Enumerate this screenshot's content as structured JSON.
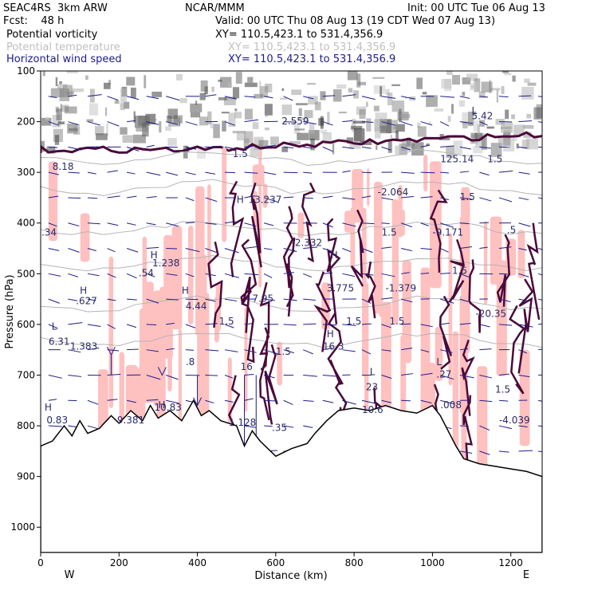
{
  "header": {
    "model": "SEAC4RS  3km ARW",
    "org": "NCAR/MMM",
    "init": "Init: 00 UTC Tue 06 Aug 13",
    "fcst": "Fcst:    48 h",
    "valid": "Valid: 00 UTC Thu 08 Aug 13 (19 CDT Wed 07 Aug 13)",
    "fields": [
      {
        "name": "Potential vorticity",
        "xy": "XY= 110.5,423.1 to 531.4,356.9",
        "color": "#000000"
      },
      {
        "name": "Potential temperature",
        "xy": "XY= 110.5,423.1 to 531.4,356.9",
        "color": "#c0c0c0"
      },
      {
        "name": "Horizontal wind speed",
        "xy": "XY= 110.5,423.1 to 531.4,356.9",
        "color": "#1c1c8c"
      }
    ]
  },
  "colors": {
    "pv_fill": "#ffc0c0",
    "pv_contour": "#4a0a3a",
    "wind": "#1c1c8c",
    "theta": "#b4b4b4",
    "terrain": "#000000"
  },
  "chart_data": {
    "type": "cross-section",
    "xlabel": "Distance (km)",
    "ylabel": "Pressure (hPa)",
    "xlim": [
      0,
      1280
    ],
    "ylim": [
      1050,
      100
    ],
    "x_ticks": [
      "0",
      "200",
      "400",
      "600",
      "800",
      "1000",
      "1200"
    ],
    "y_ticks": [
      "100",
      "200",
      "300",
      "400",
      "500",
      "600",
      "700",
      "800",
      "900",
      "1000"
    ],
    "x_end_labels": [
      "W",
      "E"
    ],
    "terrain_profile": [
      [
        0,
        840
      ],
      [
        30,
        830
      ],
      [
        60,
        800
      ],
      [
        80,
        820
      ],
      [
        100,
        790
      ],
      [
        120,
        815
      ],
      [
        150,
        805
      ],
      [
        180,
        780
      ],
      [
        200,
        795
      ],
      [
        230,
        770
      ],
      [
        260,
        790
      ],
      [
        280,
        760
      ],
      [
        300,
        785
      ],
      [
        330,
        770
      ],
      [
        360,
        790
      ],
      [
        390,
        750
      ],
      [
        410,
        780
      ],
      [
        430,
        770
      ],
      [
        460,
        790
      ],
      [
        500,
        800
      ],
      [
        520,
        840
      ],
      [
        540,
        810
      ],
      [
        560,
        830
      ],
      [
        600,
        860
      ],
      [
        640,
        845
      ],
      [
        680,
        835
      ],
      [
        700,
        815
      ],
      [
        730,
        790
      ],
      [
        760,
        770
      ],
      [
        800,
        765
      ],
      [
        840,
        770
      ],
      [
        880,
        760
      ],
      [
        920,
        770
      ],
      [
        960,
        775
      ],
      [
        1000,
        760
      ],
      [
        1020,
        780
      ],
      [
        1040,
        810
      ],
      [
        1060,
        840
      ],
      [
        1080,
        865
      ],
      [
        1120,
        875
      ],
      [
        1160,
        880
      ],
      [
        1200,
        885
      ],
      [
        1240,
        890
      ],
      [
        1280,
        900
      ]
    ],
    "annotations": [
      {
        "text": "8.18",
        "x": 30,
        "p": 295
      },
      {
        "text": "2.559",
        "x": 615,
        "p": 205
      },
      {
        "text": "1.5",
        "x": 490,
        "p": 270
      },
      {
        "text": "H",
        "x": 500,
        "p": 360
      },
      {
        "text": "13.237",
        "x": 530,
        "p": 360
      },
      {
        "text": "-2.064",
        "x": 860,
        "p": 345
      },
      {
        "text": "1.5",
        "x": 1070,
        "p": 355
      },
      {
        "text": "-9.171",
        "x": 1000,
        "p": 425
      },
      {
        "text": "1.5",
        "x": 870,
        "p": 425
      },
      {
        "text": "-2.332",
        "x": 640,
        "p": 445
      },
      {
        "text": ".34",
        "x": 2,
        "p": 425
      },
      {
        "text": "H",
        "x": 280,
        "p": 470
      },
      {
        "text": "1.238",
        "x": 285,
        "p": 485
      },
      {
        "text": ".54",
        "x": 250,
        "p": 505
      },
      {
        "text": "H",
        "x": 100,
        "p": 540
      },
      {
        "text": ".627",
        "x": 90,
        "p": 560
      },
      {
        "text": "H",
        "x": 360,
        "p": 540
      },
      {
        "text": "4.44",
        "x": 370,
        "p": 570
      },
      {
        "text": "7.95",
        "x": 540,
        "p": 555
      },
      {
        "text": "H",
        "x": 740,
        "p": 470
      },
      {
        "text": "3.775",
        "x": 730,
        "p": 535
      },
      {
        "text": "-1.379",
        "x": 880,
        "p": 535
      },
      {
        "text": "1.5",
        "x": 1050,
        "p": 500
      },
      {
        "text": "-20.35",
        "x": 1110,
        "p": 585
      },
      {
        "text": "L",
        "x": 28,
        "p": 610
      },
      {
        "text": "6.31",
        "x": 20,
        "p": 640
      },
      {
        "text": "1.383",
        "x": 75,
        "p": 650
      },
      {
        "text": "1.5",
        "x": 455,
        "p": 600
      },
      {
        "text": "1.5",
        "x": 780,
        "p": 600
      },
      {
        "text": "1.5",
        "x": 890,
        "p": 600
      },
      {
        "text": "H",
        "x": 730,
        "p": 625
      },
      {
        "text": "16.3",
        "x": 720,
        "p": 650
      },
      {
        "text": "1.5",
        "x": 600,
        "p": 660
      },
      {
        "text": ".8",
        "x": 370,
        "p": 680
      },
      {
        "text": "16",
        "x": 510,
        "p": 690
      },
      {
        "text": "L",
        "x": 1010,
        "p": 680
      },
      {
        "text": ".27",
        "x": 1010,
        "p": 705
      },
      {
        "text": "L",
        "x": 840,
        "p": 700
      },
      {
        "text": "23",
        "x": 830,
        "p": 730
      },
      {
        "text": "1.5",
        "x": 1160,
        "p": 735
      },
      {
        "text": "H",
        "x": 10,
        "p": 770
      },
      {
        "text": "0.83",
        "x": 15,
        "p": 795
      },
      {
        "text": "9.381",
        "x": 195,
        "p": 795
      },
      {
        "text": "H",
        "x": 300,
        "p": 765
      },
      {
        "text": "10.83",
        "x": 290,
        "p": 770
      },
      {
        "text": "1.128",
        "x": 480,
        "p": 800
      },
      {
        "text": ".35",
        "x": 590,
        "p": 810
      },
      {
        "text": "10.6",
        "x": 820,
        "p": 775
      },
      {
        "text": ".008",
        "x": 1020,
        "p": 765
      },
      {
        "text": "-4.039",
        "x": 1170,
        "p": 795
      },
      {
        "text": "L",
        "x": 1100,
        "p": 185
      },
      {
        "text": "5.42",
        "x": 1100,
        "p": 195
      },
      {
        "text": "125.14",
        "x": 1020,
        "p": 280
      },
      {
        "text": "1.5",
        "x": 1140,
        "p": 280
      },
      {
        "text": ".5",
        "x": 1190,
        "p": 420
      }
    ]
  }
}
